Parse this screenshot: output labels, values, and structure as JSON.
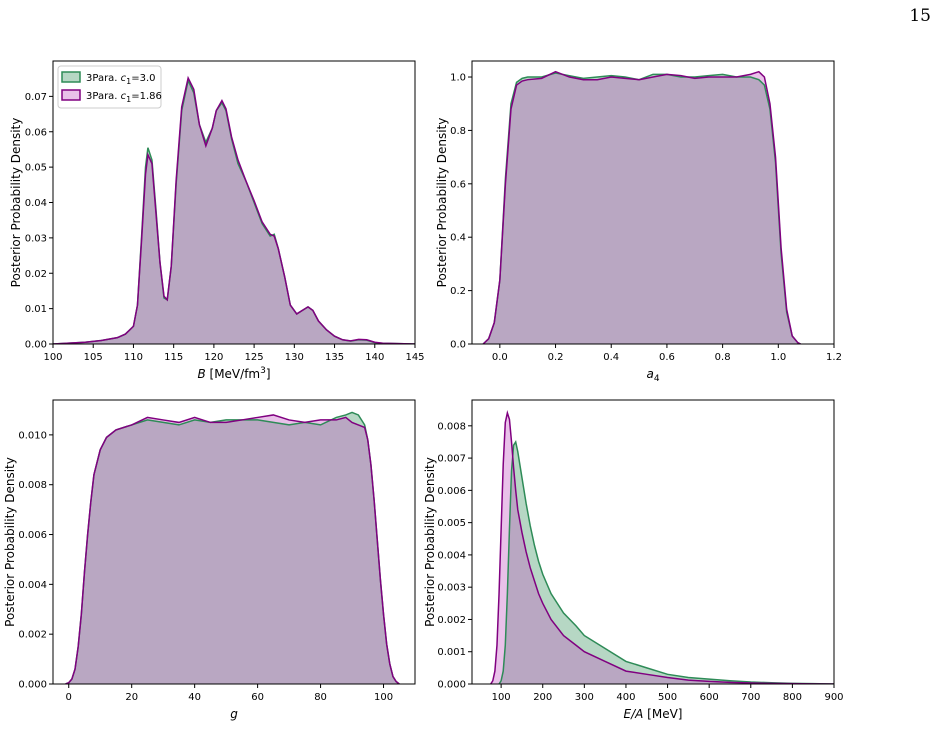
{
  "page": {
    "number": "15"
  },
  "colors": {
    "series_a": "#2e8b57",
    "series_b": "#800080",
    "fill_a": "#2e8b57",
    "fill_b": "#c04cc0"
  },
  "legend": [
    {
      "text": "3Para. c₁=3.0",
      "pre": "3Para. ",
      "var": "c",
      "sub": "1",
      "post": "=3.0"
    },
    {
      "text": "3Para. c₁=1.86",
      "pre": "3Para. ",
      "var": "c",
      "sub": "1",
      "post": "=1.86"
    }
  ],
  "chart_data": [
    {
      "type": "area",
      "ylabel": "Posterior Probability Density",
      "xlabel": {
        "var": "B",
        "rest": " [MeV/fm",
        "sup": "3",
        "end": "]"
      },
      "xlim": [
        100,
        145
      ],
      "ylim": [
        0,
        0.08
      ],
      "xticks": [
        "100",
        "105",
        "110",
        "115",
        "120",
        "125",
        "130",
        "135",
        "140",
        "145"
      ],
      "xtick_values": [
        100,
        105,
        110,
        115,
        120,
        125,
        130,
        135,
        140,
        145
      ],
      "yticks": [
        "0.00",
        "0.01",
        "0.02",
        "0.03",
        "0.04",
        "0.05",
        "0.06",
        "0.07"
      ],
      "ytick_values": [
        0,
        0.01,
        0.02,
        0.03,
        0.04,
        0.05,
        0.06,
        0.07
      ],
      "legend_placement": "top-left",
      "series": [
        {
          "name": "3Para. c₁=3.0",
          "x": [
            100,
            104,
            106,
            108,
            109,
            110,
            110.5,
            111,
            111.5,
            111.8,
            112.3,
            112.8,
            113.3,
            113.8,
            114.2,
            114.7,
            115.3,
            116,
            116.8,
            117.5,
            118.2,
            119,
            119.8,
            120.3,
            121,
            121.5,
            122.2,
            123,
            124,
            125,
            126,
            127,
            127.5,
            128,
            128.8,
            129.5,
            130.3,
            131,
            131.7,
            132.3,
            133,
            134,
            135,
            136,
            137,
            138,
            139,
            140,
            141,
            143,
            145
          ],
          "y": [
            0,
            0.0005,
            0.001,
            0.0018,
            0.0028,
            0.005,
            0.011,
            0.03,
            0.05,
            0.0555,
            0.052,
            0.038,
            0.023,
            0.013,
            0.0125,
            0.022,
            0.045,
            0.066,
            0.0745,
            0.071,
            0.062,
            0.057,
            0.061,
            0.066,
            0.0682,
            0.066,
            0.058,
            0.051,
            0.046,
            0.04,
            0.034,
            0.0305,
            0.031,
            0.027,
            0.019,
            0.011,
            0.0085,
            0.0095,
            0.0105,
            0.0095,
            0.0065,
            0.004,
            0.0022,
            0.0012,
            0.0008,
            0.0012,
            0.0011,
            0.0004,
            0.0002,
            0.0001,
            0
          ]
        },
        {
          "name": "3Para. c₁=1.86",
          "x": [
            100,
            104,
            106,
            108,
            109,
            110,
            110.5,
            111,
            111.5,
            111.8,
            112.3,
            112.8,
            113.3,
            113.8,
            114.2,
            114.7,
            115.3,
            116,
            116.8,
            117.5,
            118.2,
            119,
            119.8,
            120.3,
            121,
            121.5,
            122.2,
            123,
            124,
            125,
            126,
            127,
            127.5,
            128,
            128.8,
            129.5,
            130.3,
            131,
            131.7,
            132.3,
            133,
            134,
            135,
            136,
            137,
            138,
            139,
            140,
            141,
            143,
            145
          ],
          "y": [
            0,
            0.0005,
            0.001,
            0.0018,
            0.0028,
            0.005,
            0.011,
            0.029,
            0.048,
            0.0535,
            0.051,
            0.037,
            0.023,
            0.0135,
            0.0125,
            0.022,
            0.046,
            0.067,
            0.0752,
            0.072,
            0.062,
            0.056,
            0.061,
            0.066,
            0.0688,
            0.0665,
            0.0585,
            0.052,
            0.046,
            0.0405,
            0.0345,
            0.031,
            0.0305,
            0.027,
            0.019,
            0.011,
            0.0085,
            0.0095,
            0.0105,
            0.0095,
            0.0065,
            0.004,
            0.0022,
            0.0012,
            0.0009,
            0.0013,
            0.0012,
            0.0005,
            0.0002,
            0.0001,
            0
          ]
        }
      ]
    },
    {
      "type": "area",
      "ylabel": "Posterior Probability Density",
      "xlabel": {
        "var": "a",
        "rest": "",
        "sub": "4",
        "end": ""
      },
      "xlim": [
        -0.1,
        1.2
      ],
      "ylim": [
        0,
        1.06
      ],
      "xticks": [
        "0.0",
        "0.2",
        "0.4",
        "0.6",
        "0.8",
        "1.0",
        "1.2"
      ],
      "xtick_values": [
        0,
        0.2,
        0.4,
        0.6,
        0.8,
        1.0,
        1.2
      ],
      "yticks": [
        "0.0",
        "0.2",
        "0.4",
        "0.6",
        "0.8",
        "1.0"
      ],
      "ytick_values": [
        0,
        0.2,
        0.4,
        0.6,
        0.8,
        1.0
      ],
      "series": [
        {
          "name": "3Para. c₁=3.0",
          "x": [
            -0.06,
            -0.04,
            -0.02,
            0,
            0.02,
            0.04,
            0.06,
            0.08,
            0.1,
            0.15,
            0.2,
            0.25,
            0.3,
            0.35,
            0.4,
            0.45,
            0.5,
            0.55,
            0.6,
            0.65,
            0.7,
            0.75,
            0.8,
            0.85,
            0.9,
            0.93,
            0.95,
            0.97,
            0.99,
            1.01,
            1.03,
            1.05,
            1.07,
            1.08
          ],
          "y": [
            0,
            0.02,
            0.08,
            0.24,
            0.62,
            0.9,
            0.98,
            0.995,
            1.0,
            1.0,
            1.015,
            1.005,
            0.995,
            1.0,
            1.005,
            1.0,
            0.99,
            1.01,
            1.01,
            1.0,
            1.0,
            1.005,
            1.01,
            1.0,
            1.0,
            0.99,
            0.97,
            0.88,
            0.68,
            0.34,
            0.12,
            0.03,
            0.005,
            0
          ]
        },
        {
          "name": "3Para. c₁=1.86",
          "x": [
            -0.06,
            -0.04,
            -0.02,
            0,
            0.02,
            0.04,
            0.06,
            0.08,
            0.1,
            0.15,
            0.2,
            0.25,
            0.3,
            0.35,
            0.4,
            0.45,
            0.5,
            0.55,
            0.6,
            0.65,
            0.7,
            0.75,
            0.8,
            0.85,
            0.9,
            0.93,
            0.95,
            0.97,
            0.99,
            1.01,
            1.03,
            1.05,
            1.07,
            1.08
          ],
          "y": [
            0,
            0.02,
            0.08,
            0.24,
            0.6,
            0.88,
            0.97,
            0.985,
            0.99,
            0.995,
            1.02,
            1.0,
            0.99,
            0.99,
            1.0,
            0.995,
            0.99,
            1.0,
            1.01,
            1.005,
            0.995,
            1.0,
            1.0,
            1.0,
            1.01,
            1.02,
            1.0,
            0.9,
            0.7,
            0.36,
            0.13,
            0.03,
            0.005,
            0
          ]
        }
      ]
    },
    {
      "type": "area",
      "ylabel": "Posterior Probability Density",
      "xlabel": {
        "var": "g",
        "rest": "",
        "end": ""
      },
      "xlim": [
        -5,
        110
      ],
      "ylim": [
        0,
        0.0114
      ],
      "xticks": [
        "0",
        "20",
        "40",
        "60",
        "80",
        "100"
      ],
      "xtick_values": [
        0,
        20,
        40,
        60,
        80,
        100
      ],
      "yticks": [
        "0.000",
        "0.002",
        "0.004",
        "0.006",
        "0.008",
        "0.010"
      ],
      "ytick_values": [
        0,
        0.002,
        0.004,
        0.006,
        0.008,
        0.01
      ],
      "series": [
        {
          "name": "3Para. c₁=3.0",
          "x": [
            -1,
            0,
            1,
            2,
            3,
            4,
            5,
            6,
            7,
            8,
            10,
            12,
            15,
            20,
            25,
            30,
            35,
            40,
            45,
            50,
            55,
            60,
            65,
            70,
            75,
            80,
            85,
            88,
            90,
            92,
            94,
            95,
            96,
            97,
            98,
            99,
            100,
            101,
            102,
            103,
            104,
            105
          ],
          "y": [
            0,
            5e-05,
            0.0002,
            0.0006,
            0.0015,
            0.0028,
            0.0045,
            0.006,
            0.0073,
            0.0084,
            0.0094,
            0.0099,
            0.0102,
            0.0104,
            0.0106,
            0.0105,
            0.0104,
            0.0106,
            0.0105,
            0.0106,
            0.0106,
            0.0106,
            0.0105,
            0.0104,
            0.0105,
            0.0104,
            0.0107,
            0.0108,
            0.0109,
            0.0108,
            0.0104,
            0.0098,
            0.0088,
            0.0074,
            0.0058,
            0.0042,
            0.0028,
            0.0016,
            0.0008,
            0.0003,
            0.0001,
            0
          ]
        },
        {
          "name": "3Para. c₁=1.86",
          "x": [
            -1,
            0,
            1,
            2,
            3,
            4,
            5,
            6,
            7,
            8,
            10,
            12,
            15,
            20,
            25,
            30,
            35,
            40,
            45,
            50,
            55,
            60,
            65,
            70,
            75,
            80,
            85,
            88,
            90,
            92,
            94,
            95,
            96,
            97,
            98,
            99,
            100,
            101,
            102,
            103,
            104,
            105
          ],
          "y": [
            0,
            5e-05,
            0.0002,
            0.0006,
            0.0015,
            0.0028,
            0.0045,
            0.006,
            0.0073,
            0.0084,
            0.0094,
            0.0099,
            0.0102,
            0.0104,
            0.0107,
            0.0106,
            0.0105,
            0.0107,
            0.0105,
            0.0105,
            0.0106,
            0.0107,
            0.0108,
            0.0106,
            0.0105,
            0.0106,
            0.0106,
            0.0107,
            0.0105,
            0.0104,
            0.0103,
            0.0098,
            0.0088,
            0.0074,
            0.0058,
            0.0042,
            0.0028,
            0.0016,
            0.0008,
            0.0003,
            0.0001,
            0
          ]
        }
      ]
    },
    {
      "type": "area",
      "ylabel": "Posterior Probability Density",
      "xlabel": {
        "var": "E/A",
        "rest": " [MeV]",
        "end": ""
      },
      "xlim": [
        30,
        900
      ],
      "ylim": [
        0,
        0.0088
      ],
      "xticks": [
        "100",
        "200",
        "300",
        "400",
        "500",
        "600",
        "700",
        "800",
        "900"
      ],
      "xtick_values": [
        100,
        200,
        300,
        400,
        500,
        600,
        700,
        800,
        900
      ],
      "yticks": [
        "0.000",
        "0.001",
        "0.002",
        "0.003",
        "0.004",
        "0.005",
        "0.006",
        "0.007",
        "0.008"
      ],
      "ytick_values": [
        0,
        0.001,
        0.002,
        0.003,
        0.004,
        0.005,
        0.006,
        0.007,
        0.008
      ],
      "series": [
        {
          "name": "3Para. c₁=3.0",
          "x": [
            95,
            100,
            105,
            110,
            115,
            120,
            125,
            130,
            135,
            140,
            150,
            160,
            170,
            180,
            190,
            200,
            220,
            250,
            280,
            300,
            350,
            400,
            450,
            500,
            550,
            600,
            650,
            700,
            750,
            800,
            850,
            900
          ],
          "y": [
            0,
            0.0001,
            0.0004,
            0.0012,
            0.0028,
            0.0048,
            0.0066,
            0.0074,
            0.0075,
            0.0072,
            0.0064,
            0.0056,
            0.0049,
            0.0043,
            0.0038,
            0.0034,
            0.0028,
            0.0022,
            0.0018,
            0.0015,
            0.0011,
            0.0007,
            0.0005,
            0.0003,
            0.0002,
            0.00015,
            0.0001,
            6e-05,
            4e-05,
            2e-05,
            1e-05,
            0
          ]
        },
        {
          "name": "3Para. c₁=1.86",
          "x": [
            75,
            80,
            85,
            90,
            95,
            100,
            105,
            110,
            115,
            120,
            125,
            130,
            135,
            140,
            150,
            160,
            170,
            180,
            190,
            200,
            220,
            250,
            280,
            300,
            350,
            400,
            450,
            500,
            550,
            600,
            650,
            700,
            750,
            800,
            850,
            900
          ],
          "y": [
            0,
            0.0001,
            0.0004,
            0.0012,
            0.0028,
            0.0048,
            0.0068,
            0.0081,
            0.0084,
            0.0082,
            0.0075,
            0.0067,
            0.006,
            0.0054,
            0.0047,
            0.0041,
            0.0036,
            0.0032,
            0.0028,
            0.0025,
            0.002,
            0.0015,
            0.0012,
            0.001,
            0.0007,
            0.0004,
            0.0003,
            0.0002,
            0.00012,
            8e-05,
            5e-05,
            3e-05,
            2e-05,
            1e-05,
            5e-06,
            0
          ]
        }
      ]
    }
  ]
}
